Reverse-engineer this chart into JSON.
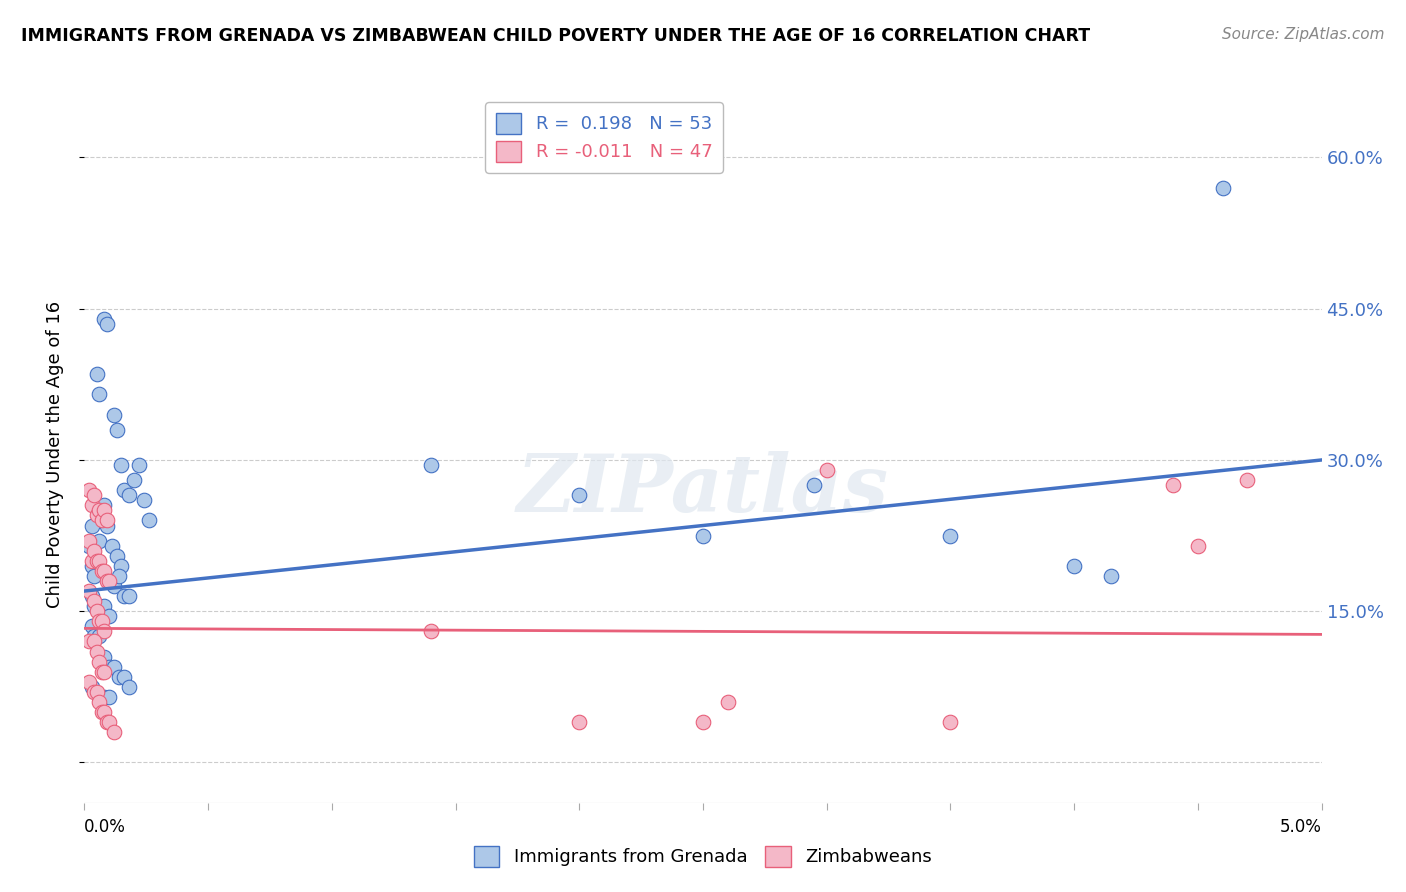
{
  "title": "IMMIGRANTS FROM GRENADA VS ZIMBABWEAN CHILD POVERTY UNDER THE AGE OF 16 CORRELATION CHART",
  "source": "Source: ZipAtlas.com",
  "ylabel": "Child Poverty Under the Age of 16",
  "yticks": [
    0.0,
    0.15,
    0.3,
    0.45,
    0.6
  ],
  "ytick_labels": [
    "",
    "15.0%",
    "30.0%",
    "45.0%",
    "60.0%"
  ],
  "xlim": [
    0.0,
    0.05
  ],
  "ylim": [
    -0.04,
    0.65
  ],
  "legend_r1": "R =  0.198   N = 53",
  "legend_r2": "R = -0.011   N = 47",
  "color_blue": "#adc8e8",
  "color_pink": "#f4b8c8",
  "line_blue": "#4472c4",
  "line_pink": "#e8607a",
  "blue_scatter": [
    [
      0.0002,
      0.215
    ],
    [
      0.0003,
      0.235
    ],
    [
      0.0005,
      0.385
    ],
    [
      0.0006,
      0.365
    ],
    [
      0.0008,
      0.44
    ],
    [
      0.0009,
      0.435
    ],
    [
      0.0012,
      0.345
    ],
    [
      0.0013,
      0.33
    ],
    [
      0.0015,
      0.295
    ],
    [
      0.0016,
      0.27
    ],
    [
      0.0018,
      0.265
    ],
    [
      0.002,
      0.28
    ],
    [
      0.0022,
      0.295
    ],
    [
      0.0024,
      0.26
    ],
    [
      0.0026,
      0.24
    ],
    [
      0.0003,
      0.195
    ],
    [
      0.0004,
      0.185
    ],
    [
      0.0006,
      0.22
    ],
    [
      0.0008,
      0.255
    ],
    [
      0.0009,
      0.235
    ],
    [
      0.0011,
      0.215
    ],
    [
      0.0013,
      0.205
    ],
    [
      0.0015,
      0.195
    ],
    [
      0.0003,
      0.165
    ],
    [
      0.0004,
      0.155
    ],
    [
      0.0006,
      0.155
    ],
    [
      0.0008,
      0.155
    ],
    [
      0.001,
      0.145
    ],
    [
      0.0012,
      0.175
    ],
    [
      0.0014,
      0.185
    ],
    [
      0.0016,
      0.165
    ],
    [
      0.0018,
      0.165
    ],
    [
      0.0003,
      0.135
    ],
    [
      0.0004,
      0.125
    ],
    [
      0.0006,
      0.125
    ],
    [
      0.0008,
      0.105
    ],
    [
      0.001,
      0.095
    ],
    [
      0.0012,
      0.095
    ],
    [
      0.0014,
      0.085
    ],
    [
      0.0016,
      0.085
    ],
    [
      0.0018,
      0.075
    ],
    [
      0.0003,
      0.075
    ],
    [
      0.0006,
      0.065
    ],
    [
      0.0008,
      0.065
    ],
    [
      0.001,
      0.065
    ],
    [
      0.014,
      0.295
    ],
    [
      0.02,
      0.265
    ],
    [
      0.025,
      0.225
    ],
    [
      0.0295,
      0.275
    ],
    [
      0.035,
      0.225
    ],
    [
      0.04,
      0.195
    ],
    [
      0.0415,
      0.185
    ],
    [
      0.046,
      0.57
    ]
  ],
  "pink_scatter": [
    [
      0.0002,
      0.27
    ],
    [
      0.0003,
      0.255
    ],
    [
      0.0004,
      0.265
    ],
    [
      0.0005,
      0.245
    ],
    [
      0.0006,
      0.25
    ],
    [
      0.0007,
      0.24
    ],
    [
      0.0008,
      0.25
    ],
    [
      0.0009,
      0.24
    ],
    [
      0.0002,
      0.22
    ],
    [
      0.0003,
      0.2
    ],
    [
      0.0004,
      0.21
    ],
    [
      0.0005,
      0.2
    ],
    [
      0.0006,
      0.2
    ],
    [
      0.0007,
      0.19
    ],
    [
      0.0008,
      0.19
    ],
    [
      0.0009,
      0.18
    ],
    [
      0.001,
      0.18
    ],
    [
      0.0002,
      0.17
    ],
    [
      0.0004,
      0.16
    ],
    [
      0.0005,
      0.15
    ],
    [
      0.0006,
      0.14
    ],
    [
      0.0007,
      0.14
    ],
    [
      0.0008,
      0.13
    ],
    [
      0.0002,
      0.12
    ],
    [
      0.0004,
      0.12
    ],
    [
      0.0005,
      0.11
    ],
    [
      0.0006,
      0.1
    ],
    [
      0.0007,
      0.09
    ],
    [
      0.0008,
      0.09
    ],
    [
      0.0002,
      0.08
    ],
    [
      0.0004,
      0.07
    ],
    [
      0.0005,
      0.07
    ],
    [
      0.0006,
      0.06
    ],
    [
      0.0007,
      0.05
    ],
    [
      0.0008,
      0.05
    ],
    [
      0.0009,
      0.04
    ],
    [
      0.001,
      0.04
    ],
    [
      0.0012,
      0.03
    ],
    [
      0.014,
      0.13
    ],
    [
      0.02,
      0.04
    ],
    [
      0.025,
      0.04
    ],
    [
      0.026,
      0.06
    ],
    [
      0.03,
      0.29
    ],
    [
      0.035,
      0.04
    ],
    [
      0.044,
      0.275
    ],
    [
      0.045,
      0.215
    ],
    [
      0.047,
      0.28
    ]
  ],
  "blue_line_x": [
    0.0,
    0.05
  ],
  "blue_line_y": [
    0.17,
    0.3
  ],
  "pink_line_x": [
    0.0,
    0.05
  ],
  "pink_line_y": [
    0.133,
    0.127
  ],
  "watermark": "ZIPatlas",
  "grid_color": "#cccccc",
  "background_color": "#ffffff"
}
